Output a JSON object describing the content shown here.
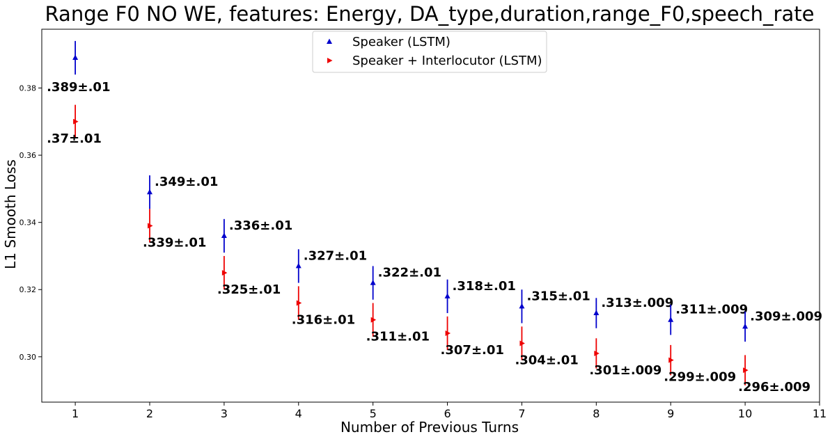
{
  "chart_data": {
    "type": "scatter",
    "title": "Range F0 NO WE, features: Energy, DA_type,duration,range_F0,speech_rate",
    "xlabel": "Number of Previous Turns",
    "ylabel": "L1 Smooth Loss",
    "xlim": [
      0.55,
      11
    ],
    "ylim": [
      0.2865,
      0.3975
    ],
    "xticks": [
      1,
      2,
      3,
      4,
      5,
      6,
      7,
      8,
      9,
      10,
      11
    ],
    "yticks": [
      0.3,
      0.32,
      0.34,
      0.36,
      0.38
    ],
    "ytick_labels": [
      "0.30",
      "0.32",
      "0.34",
      "0.36",
      "0.38"
    ],
    "grid": false,
    "legend_position": "top-center",
    "series": [
      {
        "name": "Speaker (LSTM)",
        "color": "#0000cc",
        "marker": "triangle-up",
        "x": [
          1,
          2,
          3,
          4,
          5,
          6,
          7,
          8,
          9,
          10
        ],
        "y": [
          0.389,
          0.349,
          0.336,
          0.327,
          0.322,
          0.318,
          0.315,
          0.313,
          0.311,
          0.309
        ],
        "error": [
          0.005,
          0.005,
          0.005,
          0.005,
          0.005,
          0.005,
          0.005,
          0.0045,
          0.0045,
          0.0045
        ],
        "labels": [
          ".389±.01",
          ".349±.01",
          ".336±.01",
          ".327±.01",
          ".322±.01",
          ".318±.01",
          ".315±.01",
          ".313±.009",
          ".311±.009",
          ".309±.009"
        ]
      },
      {
        "name": "Speaker + Interlocutor (LSTM)",
        "color": "#ee0000",
        "marker": "triangle-right",
        "x": [
          1,
          2,
          3,
          4,
          5,
          6,
          7,
          8,
          9,
          10
        ],
        "y": [
          0.37,
          0.339,
          0.325,
          0.316,
          0.311,
          0.307,
          0.304,
          0.301,
          0.299,
          0.296
        ],
        "error": [
          0.005,
          0.005,
          0.005,
          0.005,
          0.005,
          0.005,
          0.005,
          0.0045,
          0.0045,
          0.0045
        ],
        "labels": [
          ".37±.01",
          ".339±.01",
          ".325±.01",
          ".316±.01",
          ".311±.01",
          ".307±.01",
          ".304±.01",
          ".301±.009",
          ".299±.009",
          ".296±.009"
        ]
      }
    ]
  }
}
